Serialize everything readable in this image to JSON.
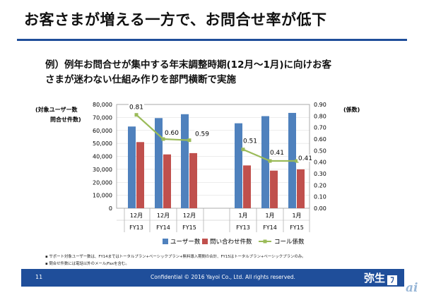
{
  "slide": {
    "title": "お客さまが増える一方で、お問合せ率が低下",
    "subtitle_line1": "例）例年お問合せが集中する年末調整時期(12月～1月)に向けお客",
    "subtitle_line2": "さまが迷わない仕組み作りを部門横断で実施",
    "notes": [
      "サポート対象ユーザー数は、FY14まではトータルプラン+ベーシックプラン+無料導入期間の合計、FY15はトータルプラン+ベーシックプランのみ。",
      "問合せ件数には電話以外のメール/Faxを含む。"
    ],
    "footer": {
      "page_number": "11",
      "confidential": "Confidential  © 2016 Yayoi Co., Ltd.  All rights reserved.",
      "brand": "弥生",
      "brand_mark": "ﾌ"
    },
    "watermark": "ai"
  },
  "chart_data": {
    "type": "bar",
    "left_axis_label_1": "(対象ユーザー数",
    "left_axis_label_2": "問合せ件数)",
    "right_axis_label": "(係数)",
    "categories": [
      {
        "month": "12月",
        "fy": "FY13"
      },
      {
        "month": "12月",
        "fy": "FY14"
      },
      {
        "month": "12月",
        "fy": "FY15"
      },
      {
        "month": "1月",
        "fy": "FY13"
      },
      {
        "month": "1月",
        "fy": "FY14"
      },
      {
        "month": "1月",
        "fy": "FY15"
      }
    ],
    "ylim_left": [
      0,
      80000
    ],
    "yticks_left": [
      "0",
      "10,000",
      "20,000",
      "30,000",
      "40,000",
      "50,000",
      "60,000",
      "70,000",
      "80,000"
    ],
    "ylim_right": [
      0,
      0.9
    ],
    "yticks_right": [
      "0.00",
      "0.10",
      "0.20",
      "0.30",
      "0.40",
      "0.50",
      "0.60",
      "0.70",
      "0.80",
      "0.90"
    ],
    "series": [
      {
        "name": "ユーザー数",
        "type": "bar",
        "axis": "left",
        "color": "#4f81bd",
        "values": [
          63000,
          69500,
          72500,
          65500,
          71000,
          73500
        ]
      },
      {
        "name": "問い合わせ件数",
        "type": "bar",
        "axis": "left",
        "color": "#c0504d",
        "values": [
          51000,
          41500,
          42500,
          33000,
          29000,
          30000
        ]
      },
      {
        "name": "コール係数",
        "type": "line",
        "axis": "right",
        "color": "#9bbb59",
        "values": [
          0.81,
          0.6,
          0.59,
          0.51,
          0.41,
          0.41
        ],
        "labels": [
          "0.81",
          "0.60",
          "0.59",
          "0.51",
          "0.41",
          "0.41"
        ]
      }
    ]
  }
}
